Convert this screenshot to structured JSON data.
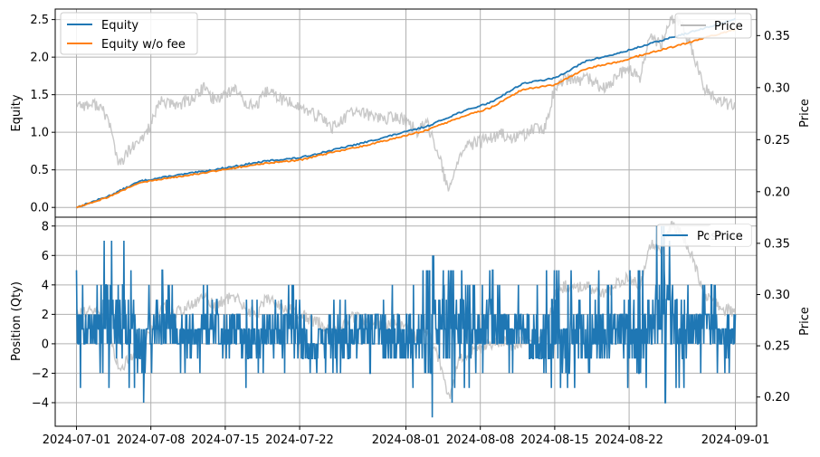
{
  "chart_data": [
    {
      "type": "line",
      "xlabel": "",
      "ylabel": "Equity",
      "y2label": "Price",
      "xlim": [
        "2024-06-29",
        "2024-09-03"
      ],
      "ylim": [
        -0.13,
        2.64
      ],
      "y2lim": [
        0.1755,
        0.3755
      ],
      "yticks": [
        0.0,
        0.5,
        1.0,
        1.5,
        2.0,
        2.5
      ],
      "ytick_labels": [
        "0.0",
        "0.5",
        "1.0",
        "1.5",
        "2.0",
        "2.5"
      ],
      "y2ticks": [
        0.2,
        0.25,
        0.3,
        0.35
      ],
      "y2tick_labels": [
        "0.20",
        "0.25",
        "0.30",
        "0.35"
      ],
      "grid": true,
      "legend_position": "top-left",
      "legend2_position": "top-right",
      "series": [
        {
          "name": "Equity",
          "axis": "left",
          "color": "#1f77b4",
          "x": [
            "2024-07-01",
            "2024-07-04",
            "2024-07-07",
            "2024-07-10",
            "2024-07-13",
            "2024-07-16",
            "2024-07-19",
            "2024-07-22",
            "2024-07-25",
            "2024-07-28",
            "2024-07-31",
            "2024-08-03",
            "2024-08-06",
            "2024-08-09",
            "2024-08-12",
            "2024-08-15",
            "2024-08-18",
            "2024-08-21",
            "2024-08-24",
            "2024-08-27",
            "2024-08-30",
            "2024-09-01"
          ],
          "y": [
            0.0,
            0.15,
            0.35,
            0.42,
            0.48,
            0.55,
            0.62,
            0.66,
            0.76,
            0.86,
            0.97,
            1.08,
            1.26,
            1.4,
            1.65,
            1.72,
            1.95,
            2.05,
            2.18,
            2.3,
            2.42,
            2.51
          ]
        },
        {
          "name": "Equity w/o fee",
          "axis": "left",
          "color": "#ff7f0e",
          "x": [
            "2024-07-01",
            "2024-07-04",
            "2024-07-07",
            "2024-07-10",
            "2024-07-13",
            "2024-07-16",
            "2024-07-19",
            "2024-07-22",
            "2024-07-25",
            "2024-07-28",
            "2024-07-31",
            "2024-08-03",
            "2024-08-06",
            "2024-08-09",
            "2024-08-12",
            "2024-08-15",
            "2024-08-18",
            "2024-08-21",
            "2024-08-24",
            "2024-08-27",
            "2024-08-30",
            "2024-09-01"
          ],
          "y": [
            0.0,
            0.14,
            0.33,
            0.4,
            0.46,
            0.53,
            0.59,
            0.63,
            0.73,
            0.82,
            0.92,
            1.03,
            1.19,
            1.33,
            1.57,
            1.63,
            1.85,
            1.94,
            2.06,
            2.17,
            2.29,
            2.37
          ]
        },
        {
          "name": "Price",
          "axis": "right",
          "color": "#bbbbbb",
          "x": [
            "2024-07-01",
            "2024-07-02",
            "2024-07-03",
            "2024-07-04",
            "2024-07-05",
            "2024-07-06",
            "2024-07-07",
            "2024-07-08",
            "2024-07-09",
            "2024-07-10",
            "2024-07-11",
            "2024-07-12",
            "2024-07-13",
            "2024-07-14",
            "2024-07-15",
            "2024-07-16",
            "2024-07-17",
            "2024-07-18",
            "2024-07-19",
            "2024-07-20",
            "2024-07-21",
            "2024-07-22",
            "2024-07-23",
            "2024-07-24",
            "2024-07-25",
            "2024-07-26",
            "2024-07-27",
            "2024-07-28",
            "2024-07-29",
            "2024-07-30",
            "2024-07-31",
            "2024-08-01",
            "2024-08-02",
            "2024-08-03",
            "2024-08-04",
            "2024-08-05",
            "2024-08-06",
            "2024-08-07",
            "2024-08-08",
            "2024-08-09",
            "2024-08-10",
            "2024-08-11",
            "2024-08-12",
            "2024-08-13",
            "2024-08-14",
            "2024-08-15",
            "2024-08-16",
            "2024-08-17",
            "2024-08-18",
            "2024-08-19",
            "2024-08-20",
            "2024-08-21",
            "2024-08-22",
            "2024-08-23",
            "2024-08-24",
            "2024-08-25",
            "2024-08-26",
            "2024-08-27",
            "2024-08-28",
            "2024-08-29",
            "2024-08-30",
            "2024-08-31",
            "2024-09-01"
          ],
          "y": [
            0.285,
            0.283,
            0.284,
            0.27,
            0.225,
            0.24,
            0.248,
            0.265,
            0.288,
            0.283,
            0.285,
            0.29,
            0.3,
            0.288,
            0.295,
            0.298,
            0.285,
            0.282,
            0.298,
            0.29,
            0.286,
            0.282,
            0.275,
            0.272,
            0.262,
            0.268,
            0.278,
            0.275,
            0.273,
            0.27,
            0.272,
            0.268,
            0.258,
            0.265,
            0.24,
            0.198,
            0.235,
            0.245,
            0.248,
            0.252,
            0.255,
            0.25,
            0.255,
            0.26,
            0.258,
            0.3,
            0.308,
            0.306,
            0.31,
            0.302,
            0.3,
            0.312,
            0.318,
            0.308,
            0.35,
            0.34,
            0.368,
            0.36,
            0.335,
            0.3,
            0.292,
            0.285,
            0.283
          ]
        }
      ]
    },
    {
      "type": "line",
      "xlabel": "",
      "ylabel": "Position (Qty)",
      "y2label": "Price",
      "xlim": [
        "2024-06-29",
        "2024-09-03"
      ],
      "ylim": [
        -5.6,
        8.6
      ],
      "y2lim": [
        0.1715,
        0.3755
      ],
      "yticks": [
        -4,
        -2,
        0,
        2,
        4,
        6,
        8
      ],
      "ytick_labels": [
        "−4",
        "−2",
        "0",
        "2",
        "4",
        "6",
        "8"
      ],
      "y2ticks": [
        0.2,
        0.25,
        0.3,
        0.35
      ],
      "y2tick_labels": [
        "0.20",
        "0.25",
        "0.30",
        "0.35"
      ],
      "xticks": [
        "2024-07-01",
        "2024-07-08",
        "2024-07-15",
        "2024-07-22",
        "2024-08-01",
        "2024-08-08",
        "2024-08-15",
        "2024-08-22",
        "2024-09-01"
      ],
      "xtick_labels": [
        "2024-07-01",
        "2024-07-08",
        "2024-07-15",
        "2024-07-22",
        "2024-08-01",
        "2024-08-08",
        "2024-08-15",
        "2024-08-22",
        "2024-09-01"
      ],
      "grid": true,
      "legend_position": "top-right",
      "legend2_position": "top-right",
      "series": [
        {
          "name": "Position",
          "axis": "left",
          "color": "#1f77b4",
          "x": [
            "2024-07-01",
            "2024-07-02",
            "2024-07-03",
            "2024-07-04",
            "2024-07-05",
            "2024-07-06",
            "2024-07-07",
            "2024-07-08",
            "2024-07-09",
            "2024-07-10",
            "2024-07-11",
            "2024-07-12",
            "2024-07-13",
            "2024-07-14",
            "2024-07-15",
            "2024-07-16",
            "2024-07-17",
            "2024-07-18",
            "2024-07-19",
            "2024-07-20",
            "2024-07-21",
            "2024-07-22",
            "2024-07-23",
            "2024-07-24",
            "2024-07-25",
            "2024-07-26",
            "2024-07-27",
            "2024-07-28",
            "2024-07-29",
            "2024-07-30",
            "2024-07-31",
            "2024-08-01",
            "2024-08-02",
            "2024-08-03",
            "2024-08-04",
            "2024-08-05",
            "2024-08-06",
            "2024-08-07",
            "2024-08-08",
            "2024-08-09",
            "2024-08-10",
            "2024-08-11",
            "2024-08-12",
            "2024-08-13",
            "2024-08-14",
            "2024-08-15",
            "2024-08-16",
            "2024-08-17",
            "2024-08-18",
            "2024-08-19",
            "2024-08-20",
            "2024-08-21",
            "2024-08-22",
            "2024-08-23",
            "2024-08-24",
            "2024-08-25",
            "2024-08-26",
            "2024-08-27",
            "2024-08-28",
            "2024-08-29",
            "2024-08-30",
            "2024-08-31",
            "2024-09-01"
          ],
          "y_max": [
            5,
            4,
            4,
            7,
            7,
            5,
            3,
            4,
            5,
            4,
            3,
            3,
            4,
            5,
            3,
            4,
            3,
            3,
            4,
            3,
            4,
            3,
            2,
            3,
            3,
            3,
            2,
            3,
            4,
            3,
            4,
            4,
            4,
            5,
            6,
            8,
            5,
            4,
            4,
            5,
            4,
            4,
            4,
            4,
            5,
            5,
            4,
            5,
            4,
            5,
            4,
            4,
            5,
            5,
            6,
            8,
            7,
            5,
            4,
            4,
            4,
            3,
            2
          ],
          "y_min": [
            -3,
            -2,
            -2,
            -3,
            -4,
            -3,
            -4,
            -2,
            -2,
            -2,
            -2,
            -2,
            -2,
            -2,
            -2,
            -2,
            -3,
            -2,
            -2,
            -2,
            -2,
            -2,
            -2,
            -2,
            -2,
            -2,
            -2,
            -1,
            -2,
            -2,
            -3,
            -3,
            -3,
            -5,
            -3,
            -4,
            -3,
            -3,
            -2,
            -2,
            -2,
            -2,
            -2,
            -3,
            -5,
            -3,
            -5,
            -3,
            -4,
            -3,
            -3,
            -2,
            -3,
            -5,
            -3,
            -4,
            -3,
            -3,
            -2,
            -2,
            -2,
            -2,
            -1
          ]
        },
        {
          "name": "Price",
          "axis": "right",
          "color": "#bbbbbb",
          "x": [
            "2024-07-01",
            "2024-07-02",
            "2024-07-03",
            "2024-07-04",
            "2024-07-05",
            "2024-07-06",
            "2024-07-07",
            "2024-07-08",
            "2024-07-09",
            "2024-07-10",
            "2024-07-11",
            "2024-07-12",
            "2024-07-13",
            "2024-07-14",
            "2024-07-15",
            "2024-07-16",
            "2024-07-17",
            "2024-07-18",
            "2024-07-19",
            "2024-07-20",
            "2024-07-21",
            "2024-07-22",
            "2024-07-23",
            "2024-07-24",
            "2024-07-25",
            "2024-07-26",
            "2024-07-27",
            "2024-07-28",
            "2024-07-29",
            "2024-07-30",
            "2024-07-31",
            "2024-08-01",
            "2024-08-02",
            "2024-08-03",
            "2024-08-04",
            "2024-08-05",
            "2024-08-06",
            "2024-08-07",
            "2024-08-08",
            "2024-08-09",
            "2024-08-10",
            "2024-08-11",
            "2024-08-12",
            "2024-08-13",
            "2024-08-14",
            "2024-08-15",
            "2024-08-16",
            "2024-08-17",
            "2024-08-18",
            "2024-08-19",
            "2024-08-20",
            "2024-08-21",
            "2024-08-22",
            "2024-08-23",
            "2024-08-24",
            "2024-08-25",
            "2024-08-26",
            "2024-08-27",
            "2024-08-28",
            "2024-08-29",
            "2024-08-30",
            "2024-08-31",
            "2024-09-01"
          ],
          "y": [
            0.285,
            0.283,
            0.284,
            0.27,
            0.225,
            0.24,
            0.248,
            0.265,
            0.288,
            0.283,
            0.285,
            0.29,
            0.3,
            0.288,
            0.295,
            0.298,
            0.285,
            0.282,
            0.298,
            0.29,
            0.286,
            0.282,
            0.275,
            0.272,
            0.262,
            0.268,
            0.278,
            0.275,
            0.273,
            0.27,
            0.272,
            0.268,
            0.258,
            0.265,
            0.24,
            0.198,
            0.235,
            0.245,
            0.248,
            0.252,
            0.255,
            0.25,
            0.255,
            0.26,
            0.258,
            0.3,
            0.308,
            0.306,
            0.31,
            0.302,
            0.3,
            0.312,
            0.318,
            0.308,
            0.35,
            0.34,
            0.368,
            0.36,
            0.335,
            0.3,
            0.292,
            0.285,
            0.283
          ]
        }
      ]
    }
  ]
}
